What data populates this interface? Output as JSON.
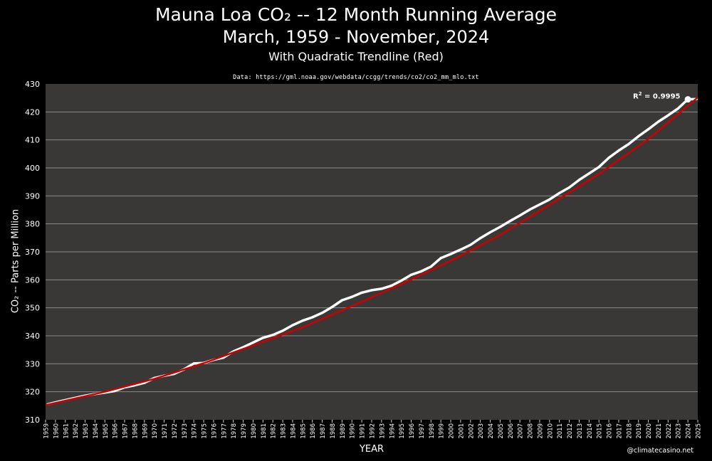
{
  "header": {
    "title_line1": "Mauna Loa CO₂ -- 12 Month Running Average",
    "title_line2": "March, 1959 - November, 2024",
    "subtitle": "With Quadratic Trendline (Red)",
    "source": "Data: https://gml.noaa.gov/webdata/ccgg/trends/co2/co2_mm_mlo.txt"
  },
  "footer": {
    "credit": "@climatecasino.net"
  },
  "annotation": {
    "r_squared_prefix": "R",
    "r_squared_exp": "2",
    "r_squared_value": " = 0.9995"
  },
  "colors": {
    "background": "#000000",
    "plot_area": "#3a3836",
    "data_line": "#ffffff",
    "trend_line": "#cc0000",
    "grid": "#8a8a8a"
  },
  "chart_data": {
    "type": "line",
    "title": "Mauna Loa CO₂ -- 12 Month Running Average",
    "xlabel": "YEAR",
    "ylabel": "CO₂  -- Parts per Million",
    "xlim": [
      1959,
      2025
    ],
    "ylim": [
      310,
      430
    ],
    "y_ticks": [
      310,
      320,
      330,
      340,
      350,
      360,
      370,
      380,
      390,
      400,
      410,
      420,
      430
    ],
    "x_tick_labels": [
      "1959",
      "1960",
      "1961",
      "1962",
      "1963",
      "1964",
      "1965",
      "1966",
      "1967",
      "1968",
      "1969",
      "1970",
      "1971",
      "1972",
      "1973",
      "1974",
      "1975",
      "1976",
      "1977",
      "1978",
      "1979",
      "1980",
      "1981",
      "1982",
      "1983",
      "1984",
      "1985",
      "1986",
      "1987",
      "1988",
      "1989",
      "1990",
      "1991",
      "1992",
      "1993",
      "1994",
      "1995",
      "1996",
      "1997",
      "1998",
      "1999",
      "2000",
      "2001",
      "2002",
      "2003",
      "2004",
      "2005",
      "2006",
      "2007",
      "2008",
      "2009",
      "2010",
      "2011",
      "2012",
      "2013",
      "2014",
      "2015",
      "2016",
      "2017",
      "2018",
      "2019",
      "2020",
      "2021",
      "2022",
      "2023",
      "2024",
      "2025"
    ],
    "grid": "horizontal",
    "series": [
      {
        "name": "12 Month Running Average",
        "x": [
          1959.2,
          1960,
          1961,
          1962,
          1963,
          1964,
          1965,
          1966,
          1967,
          1968,
          1969,
          1970,
          1971,
          1972,
          1973,
          1974,
          1975,
          1976,
          1977,
          1978,
          1979,
          1980,
          1981,
          1982,
          1983,
          1984,
          1985,
          1986,
          1987,
          1988,
          1989,
          1990,
          1991,
          1992,
          1993,
          1994,
          1995,
          1996,
          1997,
          1998,
          1999,
          2000,
          2001,
          2002,
          2003,
          2004,
          2005,
          2006,
          2007,
          2008,
          2009,
          2010,
          2011,
          2012,
          2013,
          2014,
          2015,
          2016,
          2017,
          2018,
          2019,
          2020,
          2021,
          2022,
          2023,
          2024,
          2024.9
        ],
        "y": [
          315.5,
          316.2,
          317.0,
          317.8,
          318.6,
          319.2,
          319.7,
          320.3,
          321.6,
          322.3,
          323.2,
          324.9,
          325.7,
          326.4,
          328.0,
          330.1,
          330.3,
          331.4,
          332.2,
          334.4,
          335.9,
          337.6,
          339.3,
          340.3,
          341.8,
          343.8,
          345.4,
          346.6,
          348.2,
          350.3,
          352.7,
          353.9,
          355.4,
          356.3,
          356.8,
          357.9,
          359.7,
          361.8,
          363.0,
          364.7,
          367.8,
          369.2,
          370.8,
          372.5,
          374.9,
          377.0,
          378.9,
          381.0,
          383.0,
          385.1,
          386.9,
          388.7,
          391.0,
          393.0,
          395.7,
          398.0,
          400.3,
          403.6,
          406.2,
          408.5,
          411.3,
          413.8,
          416.5,
          418.8,
          421.2,
          424.5,
          424.6
        ]
      },
      {
        "name": "Quadratic Trendline",
        "x": [
          1959,
          1965,
          1970,
          1975,
          1980,
          1985,
          1990,
          1995,
          2000,
          2005,
          2010,
          2015,
          2020,
          2025
        ],
        "y": [
          315.2,
          320.0,
          324.6,
          330.2,
          336.6,
          343.0,
          350.6,
          358.5,
          366.8,
          376.0,
          386.8,
          397.8,
          410.3,
          425.2
        ]
      }
    ],
    "r_squared": 0.9995
  }
}
